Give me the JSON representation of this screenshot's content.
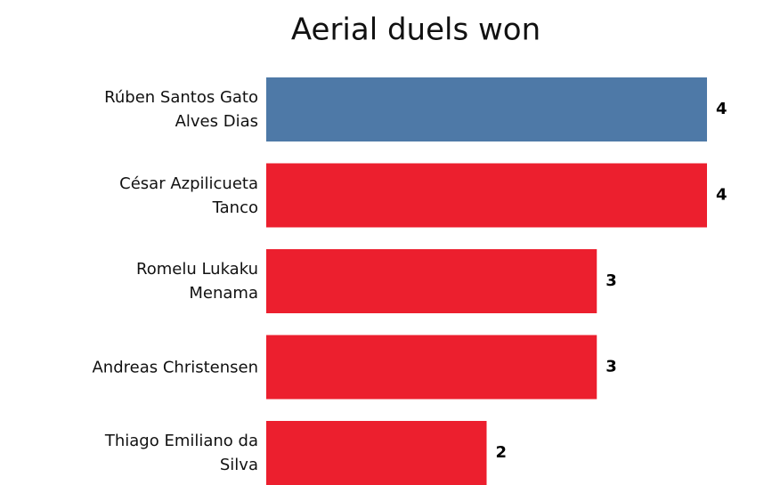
{
  "chart_data": {
    "type": "barh",
    "title": "Aerial duels won",
    "categories": [
      "Rúben  Santos Gato\nAlves Dias",
      "César Azpilicueta\nTanco",
      "Romelu Lukaku\nMenama",
      "Andreas Christensen",
      "Thiago Emiliano da\nSilva"
    ],
    "values": [
      4,
      4,
      3,
      3,
      2
    ],
    "colors": [
      "#4e79a7",
      "#ec1f2e",
      "#ec1f2e",
      "#ec1f2e",
      "#ec1f2e"
    ]
  }
}
